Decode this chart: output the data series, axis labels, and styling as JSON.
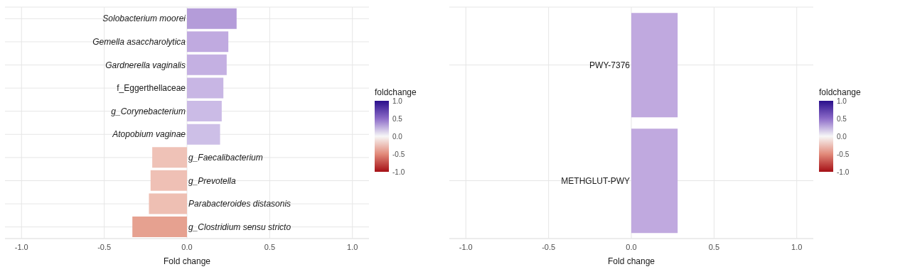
{
  "chart_data": [
    {
      "type": "bar",
      "orientation": "horizontal",
      "categories": [
        "Solobacterium moorei",
        "Gemella asaccharolytica",
        "Gardnerella vaginalis",
        "f_Eggerthellaceae",
        "g_Corynebacterium",
        "Atopobium vaginae",
        "g_Faecalibacterium",
        "g_Prevotella",
        "Parabacteroides distasonis",
        "g_Clostridium sensu stricto"
      ],
      "values": [
        0.3,
        0.25,
        0.24,
        0.22,
        0.21,
        0.2,
        -0.21,
        -0.22,
        -0.23,
        -0.33
      ],
      "colors": [
        "#b49cd9",
        "#c0aae0",
        "#c4b0e2",
        "#c8b6e4",
        "#cbbbe6",
        "#cdbfe7",
        "#efc2b7",
        "#efc0b5",
        "#eebfb3",
        "#e6a190"
      ],
      "xlim": [
        -1.1,
        1.1
      ],
      "xticks": [
        {
          "value": -1,
          "label": "-1.0"
        },
        {
          "value": -0.5,
          "label": "-0.5"
        },
        {
          "value": 0,
          "label": "0.0"
        },
        {
          "value": 0.5,
          "label": "0.5"
        },
        {
          "value": 1,
          "label": "1.0"
        }
      ],
      "xlabel": "Fold change",
      "grid": true,
      "clabel": "foldchange",
      "clim": [
        -1,
        1
      ],
      "cticks": [
        {
          "value": 1,
          "label": "1.0"
        },
        {
          "value": 0.5,
          "label": "0.5"
        },
        {
          "value": 0,
          "label": "0.0"
        },
        {
          "value": -0.5,
          "label": "-0.5"
        },
        {
          "value": -1,
          "label": "-1.0"
        }
      ]
    },
    {
      "type": "bar",
      "orientation": "horizontal",
      "categories": [
        "PWY-7376",
        "METHGLUT-PWY"
      ],
      "values": [
        0.28,
        0.28
      ],
      "colors": [
        "#c0a9df",
        "#c0a9df"
      ],
      "xlim": [
        -1.1,
        1.1
      ],
      "xticks": [
        {
          "value": -1,
          "label": "-1.0"
        },
        {
          "value": -0.5,
          "label": "-0.5"
        },
        {
          "value": 0,
          "label": "0.0"
        },
        {
          "value": 0.5,
          "label": "0.5"
        },
        {
          "value": 1,
          "label": "1.0"
        }
      ],
      "xlabel": "Fold change",
      "grid": true,
      "clabel": "foldchange",
      "clim": [
        -1,
        1
      ],
      "cticks": [
        {
          "value": 1,
          "label": "1.0"
        },
        {
          "value": 0.5,
          "label": "0.5"
        },
        {
          "value": 0,
          "label": "0.0"
        },
        {
          "value": -0.5,
          "label": "-0.5"
        },
        {
          "value": -1,
          "label": "-1.0"
        }
      ]
    }
  ]
}
